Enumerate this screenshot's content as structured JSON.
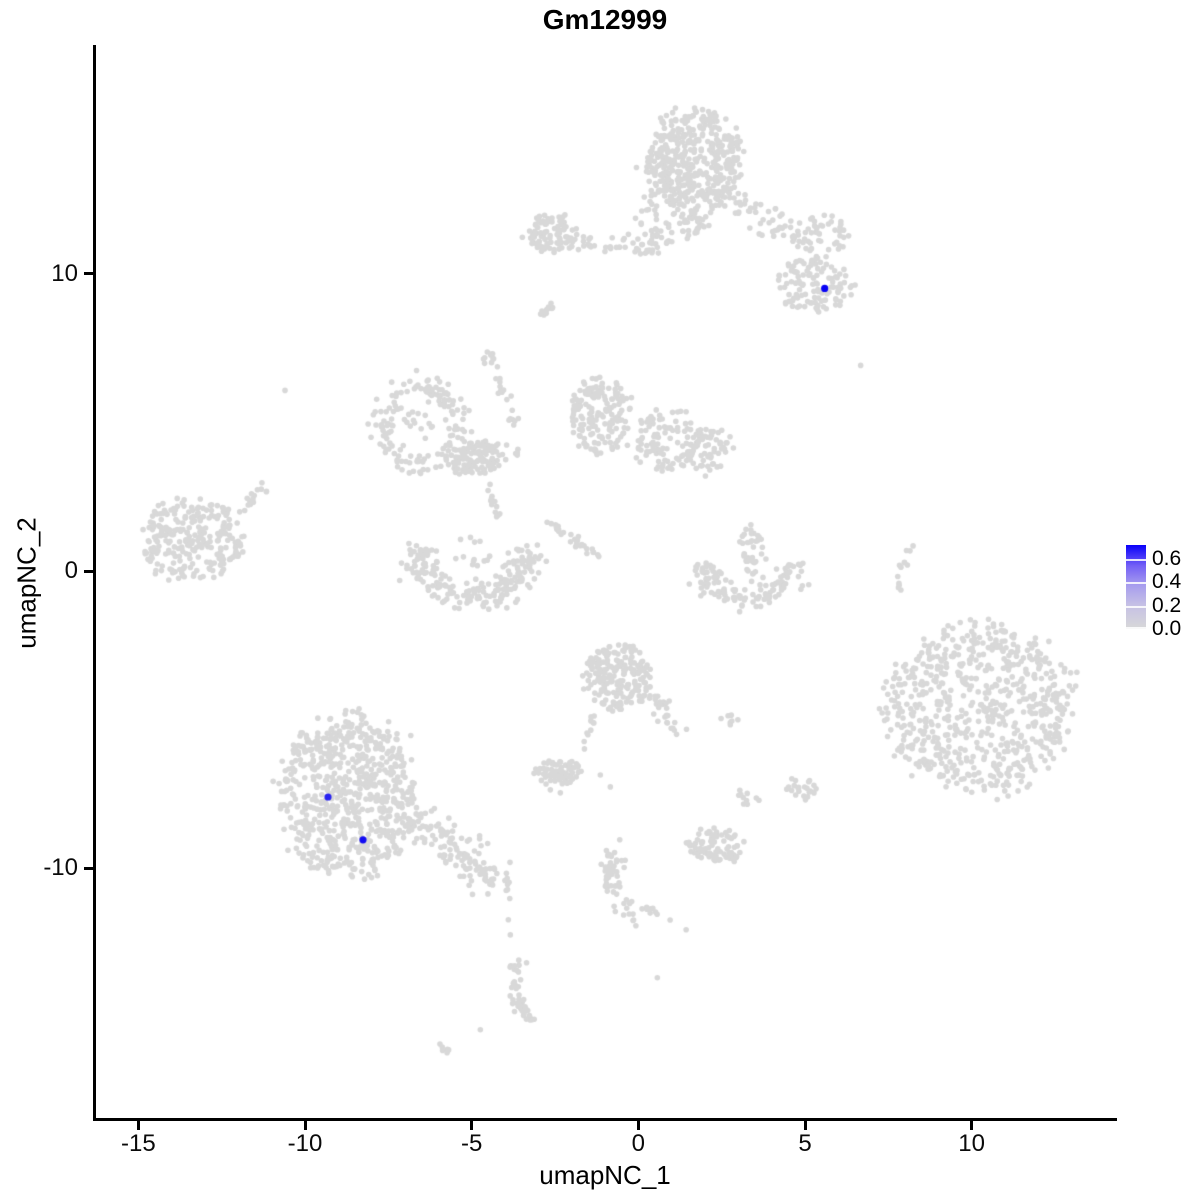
{
  "title": "Gm12999",
  "axes": {
    "x": {
      "label": "umapNC_1",
      "ticks": [
        -15,
        -10,
        -5,
        0,
        5,
        10
      ],
      "range": [
        -16.3,
        14.3
      ]
    },
    "y": {
      "label": "umapNC_2",
      "ticks": [
        -10,
        0,
        10
      ],
      "range": [
        -18.4,
        17.7
      ]
    }
  },
  "legend": {
    "ticks": [
      0.6,
      0.4,
      0.2,
      0.0
    ],
    "max_value": 0.72,
    "low_color": "#D8D8D8",
    "high_color": "#0600F5"
  },
  "chart_data": {
    "type": "scatter",
    "title": "Gm12999",
    "xlabel": "umapNC_1",
    "ylabel": "umapNC_2",
    "xlim": [
      -16.3,
      14.3
    ],
    "ylim": [
      -18.4,
      17.7
    ],
    "grid": false,
    "legend_position": "right",
    "base_point_color": "#D8D8D8",
    "highlight_high_color": "#0600F5",
    "seed": 42,
    "clusters": [
      {
        "type": "blob",
        "cx": 1.65,
        "cy": 13.88,
        "rx": 1.44,
        "ry": 1.68,
        "n": 420
      },
      {
        "type": "blob",
        "cx": 1.02,
        "cy": 11.97,
        "rx": 1.14,
        "ry": 0.94,
        "n": 80
      },
      {
        "type": "streak",
        "x1": 2.31,
        "y1": 12.64,
        "x2": 4.86,
        "y2": 11.13,
        "th": 0.5,
        "n": 55
      },
      {
        "type": "blob",
        "cx": 5.47,
        "cy": 11.29,
        "rx": 0.9,
        "ry": 0.67,
        "n": 50
      },
      {
        "type": "blob",
        "cx": 5.32,
        "cy": 9.71,
        "rx": 1.14,
        "ry": 0.94,
        "n": 120
      },
      {
        "type": "blob",
        "cx": -2.55,
        "cy": 11.36,
        "rx": 0.75,
        "ry": 0.67,
        "n": 85
      },
      {
        "type": "streak",
        "x1": -1.89,
        "y1": 11.03,
        "x2": 0.81,
        "y2": 10.89,
        "th": 0.32,
        "n": 45
      },
      {
        "type": "blob",
        "cx": 1.35,
        "cy": 11.6,
        "rx": 0.75,
        "ry": 0.6,
        "n": 12
      },
      {
        "type": "streak",
        "x1": -2.94,
        "y1": 8.5,
        "x2": -2.43,
        "y2": 9.04,
        "th": 0.16,
        "n": 12
      },
      {
        "type": "arc",
        "cx": -6.55,
        "cy": 4.91,
        "rx": 1.14,
        "ry": 1.34,
        "a0": 0,
        "a1": 360,
        "th": 0.4,
        "n": 150
      },
      {
        "type": "streak",
        "x1": -5.35,
        "y1": 4.34,
        "x2": -3.69,
        "y2": 4.0,
        "th": 0.28,
        "n": 26
      },
      {
        "type": "blob",
        "cx": -6.55,
        "cy": 4.91,
        "rx": 0.5,
        "ry": 0.55,
        "n": 14
      },
      {
        "type": "streak",
        "x1": -4.53,
        "y1": 7.36,
        "x2": -3.63,
        "y2": 4.74,
        "th": 0.14,
        "n": 20
      },
      {
        "type": "blob",
        "cx": -4.59,
        "cy": 7.19,
        "rx": 0.28,
        "ry": 0.28,
        "n": 8
      },
      {
        "type": "blob",
        "cx": -4.98,
        "cy": 3.73,
        "rx": 0.8,
        "ry": 0.52,
        "n": 90
      },
      {
        "type": "streak",
        "x1": -4.68,
        "y1": 3.23,
        "x2": -4.23,
        "y2": 1.81,
        "th": 0.14,
        "n": 13
      },
      {
        "type": "arc",
        "cx": -4.98,
        "cy": 0.37,
        "rx": 1.56,
        "ry": 1.28,
        "a0": 160,
        "a1": 380,
        "th": 0.55,
        "n": 210
      },
      {
        "type": "blob",
        "cx": -4.98,
        "cy": 0.65,
        "rx": 0.7,
        "ry": 0.5,
        "n": 12
      },
      {
        "type": "blob",
        "cx": -1.14,
        "cy": 5.24,
        "rx": 0.9,
        "ry": 1.35,
        "n": 170
      },
      {
        "type": "blob",
        "cx": 0.81,
        "cy": 4.4,
        "rx": 1.05,
        "ry": 1.08,
        "n": 110
      },
      {
        "type": "blob",
        "cx": 2.16,
        "cy": 4.07,
        "rx": 0.66,
        "ry": 0.84,
        "n": 55
      },
      {
        "type": "streak",
        "x1": -2.55,
        "y1": 1.61,
        "x2": -1.23,
        "y2": 0.5,
        "th": 0.18,
        "n": 28
      },
      {
        "type": "blob",
        "cx": -13.36,
        "cy": 1.04,
        "rx": 1.56,
        "ry": 1.41,
        "n": 260
      },
      {
        "type": "streak",
        "x1": -12.04,
        "y1": 1.88,
        "x2": -11.17,
        "y2": 2.82,
        "th": 0.22,
        "n": 15
      },
      {
        "type": "streak",
        "x1": 3.39,
        "y1": 1.31,
        "x2": 3.57,
        "y2": -0.07,
        "th": 0.4,
        "n": 40
      },
      {
        "type": "arc",
        "cx": 3.3,
        "cy": 0.27,
        "rx": 1.35,
        "ry": 1.21,
        "a0": 180,
        "a1": 360,
        "th": 0.5,
        "n": 120
      },
      {
        "type": "streak",
        "x1": 8.2,
        "y1": 0.97,
        "x2": 7.81,
        "y2": -0.5,
        "th": 0.16,
        "n": 13
      },
      {
        "type": "blob",
        "cx": 10.21,
        "cy": -4.61,
        "rx": 2.76,
        "ry": 2.86,
        "n": 680
      },
      {
        "type": "blob",
        "cx": -0.63,
        "cy": -3.53,
        "rx": 1.0,
        "ry": 1.15,
        "n": 190
      },
      {
        "type": "streak",
        "x1": 0.3,
        "y1": -4.0,
        "x2": 1.26,
        "y2": -5.58,
        "th": 0.32,
        "n": 32
      },
      {
        "type": "streak",
        "x1": -1.38,
        "y1": -4.84,
        "x2": -1.59,
        "y2": -6.12,
        "th": 0.12,
        "n": 10
      },
      {
        "type": "blob",
        "cx": -2.4,
        "cy": -6.76,
        "rx": 0.72,
        "ry": 0.44,
        "n": 70
      },
      {
        "type": "blob",
        "cx": 2.67,
        "cy": -5.04,
        "rx": 0.35,
        "ry": 0.22,
        "n": 7
      },
      {
        "type": "blob",
        "cx": 3.33,
        "cy": -7.56,
        "rx": 0.38,
        "ry": 0.3,
        "n": 10
      },
      {
        "type": "blob",
        "cx": 4.89,
        "cy": -7.29,
        "rx": 0.45,
        "ry": 0.42,
        "n": 22
      },
      {
        "type": "blob",
        "cx": 2.34,
        "cy": -9.21,
        "rx": 0.9,
        "ry": 0.6,
        "n": 85
      },
      {
        "type": "blob",
        "cx": -8.71,
        "cy": -7.53,
        "rx": 2.04,
        "ry": 2.76,
        "n": 680
      },
      {
        "type": "streak",
        "x1": -6.91,
        "y1": -8.3,
        "x2": -3.99,
        "y2": -10.52,
        "th": 0.6,
        "n": 130
      },
      {
        "type": "streak",
        "x1": -0.75,
        "y1": -9.38,
        "x2": -0.12,
        "y2": -11.8,
        "qx": -1.05,
        "qy": -10.55,
        "th": 0.35,
        "n": 55
      },
      {
        "type": "streak",
        "x1": 0.21,
        "y1": -11.33,
        "x2": 1.56,
        "y2": -12.0,
        "th": 0.14,
        "n": 10
      },
      {
        "type": "streak",
        "x1": -3.66,
        "y1": -13.17,
        "x2": -3.78,
        "y2": -14.42,
        "qx": -3.42,
        "qy": -13.8,
        "th": 0.22,
        "n": 20
      },
      {
        "type": "streak",
        "x1": -3.78,
        "y1": -14.42,
        "x2": -3.18,
        "y2": -15.16,
        "th": 0.26,
        "n": 22
      },
      {
        "type": "streak",
        "x1": -6.1,
        "y1": -15.76,
        "x2": -5.7,
        "y2": -16.17,
        "th": 0.12,
        "n": 6
      }
    ],
    "extra_points": [
      [
        -2.64,
        -7.36
      ],
      [
        -2.34,
        -7.46
      ],
      [
        -1.14,
        -6.86
      ],
      [
        -0.84,
        -7.26
      ],
      [
        -10.6,
        6.08
      ],
      [
        6.67,
        6.92
      ],
      [
        -3.48,
        11.23
      ],
      [
        0.57,
        -13.68
      ],
      [
        -3.9,
        -11.73
      ],
      [
        -3.84,
        -12.24
      ],
      [
        -4.74,
        -15.43
      ]
    ],
    "highlighted_cells": [
      {
        "x": 5.59,
        "y": 9.51,
        "value": 0.65
      },
      {
        "x": -9.31,
        "y": -7.6,
        "value": 0.55
      },
      {
        "x": -8.26,
        "y": -9.04,
        "value": 0.62
      }
    ]
  }
}
